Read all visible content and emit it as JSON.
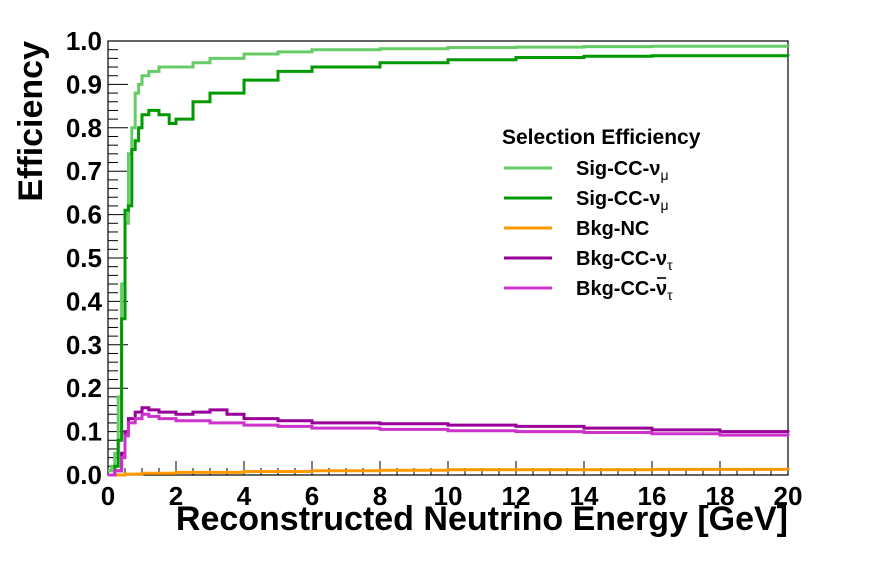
{
  "chart_data": {
    "type": "line",
    "xlabel": "Reconstructed Neutrino Energy [GeV]",
    "ylabel": "Efficiency",
    "xlim": [
      0,
      20
    ],
    "ylim": [
      0,
      1.0
    ],
    "x_ticks": [
      "0",
      "2",
      "4",
      "6",
      "8",
      "10",
      "12",
      "14",
      "16",
      "18",
      "20"
    ],
    "y_ticks": [
      "0.0",
      "0.1",
      "0.2",
      "0.3",
      "0.4",
      "0.5",
      "0.6",
      "0.7",
      "0.8",
      "0.9",
      "1.0"
    ],
    "grid": false,
    "legend_position": "top-right",
    "legend_title": "Selection Efficiency",
    "series": [
      {
        "base": "Sig-CC-",
        "sym": "ν",
        "sub": "μ",
        "bar": false,
        "color": "#66cc66",
        "x": [
          0,
          0.1,
          0.2,
          0.3,
          0.4,
          0.5,
          0.6,
          0.7,
          0.8,
          0.9,
          1.0,
          1.2,
          1.5,
          2.0,
          2.5,
          3.0,
          4.0,
          5.0,
          6.0,
          8.0,
          10.0,
          12.0,
          14.0,
          16.0,
          18.0,
          20.0
        ],
        "y": [
          0.01,
          0.02,
          0.05,
          0.18,
          0.44,
          0.58,
          0.74,
          0.8,
          0.88,
          0.9,
          0.92,
          0.93,
          0.94,
          0.94,
          0.95,
          0.96,
          0.97,
          0.975,
          0.98,
          0.982,
          0.985,
          0.986,
          0.987,
          0.988,
          0.988,
          0.987
        ]
      },
      {
        "base": "Sig-CC-",
        "sym": "ν",
        "sub": "μ",
        "bar": false,
        "color": "#009900",
        "x": [
          0,
          0.1,
          0.2,
          0.3,
          0.4,
          0.5,
          0.6,
          0.7,
          0.8,
          0.9,
          1.0,
          1.2,
          1.5,
          1.8,
          2.0,
          2.5,
          3.0,
          4.0,
          5.0,
          6.0,
          8.0,
          10.0,
          12.0,
          14.0,
          16.0,
          18.0,
          20.0
        ],
        "y": [
          0.0,
          0.0,
          0.02,
          0.08,
          0.36,
          0.61,
          0.62,
          0.75,
          0.77,
          0.8,
          0.83,
          0.84,
          0.83,
          0.81,
          0.82,
          0.86,
          0.88,
          0.91,
          0.93,
          0.94,
          0.95,
          0.957,
          0.962,
          0.965,
          0.966,
          0.966,
          0.965
        ]
      },
      {
        "base": "Bkg-NC",
        "sym": "",
        "sub": "",
        "bar": false,
        "color": "#ff9900",
        "x": [
          0,
          0.5,
          1.0,
          2.0,
          4.0,
          6.0,
          8.0,
          10.0,
          12.0,
          14.0,
          16.0,
          18.0,
          20.0
        ],
        "y": [
          0.0,
          0.002,
          0.004,
          0.006,
          0.008,
          0.01,
          0.011,
          0.012,
          0.012,
          0.012,
          0.013,
          0.013,
          0.012
        ]
      },
      {
        "base": "Bkg-CC-",
        "sym": "ν",
        "sub": "τ",
        "bar": false,
        "color": "#990099",
        "x": [
          0,
          0.2,
          0.4,
          0.5,
          0.6,
          0.8,
          1.0,
          1.2,
          1.5,
          2.0,
          2.5,
          3.0,
          3.5,
          4.0,
          5.0,
          6.0,
          8.0,
          10.0,
          12.0,
          14.0,
          16.0,
          18.0,
          20.0
        ],
        "y": [
          0.0,
          0.01,
          0.05,
          0.1,
          0.13,
          0.145,
          0.155,
          0.15,
          0.145,
          0.14,
          0.145,
          0.15,
          0.14,
          0.13,
          0.125,
          0.12,
          0.118,
          0.115,
          0.112,
          0.108,
          0.104,
          0.1,
          0.098
        ]
      },
      {
        "base": "Bkg-CC-",
        "sym": "ν",
        "sub": "τ",
        "bar": true,
        "color": "#cc33cc",
        "x": [
          0,
          0.2,
          0.4,
          0.5,
          0.6,
          0.8,
          1.0,
          1.2,
          1.5,
          2.0,
          2.5,
          3.0,
          4.0,
          5.0,
          6.0,
          8.0,
          10.0,
          12.0,
          14.0,
          16.0,
          18.0,
          20.0
        ],
        "y": [
          0.0,
          0.01,
          0.04,
          0.09,
          0.12,
          0.13,
          0.14,
          0.135,
          0.13,
          0.125,
          0.125,
          0.12,
          0.115,
          0.112,
          0.108,
          0.105,
          0.102,
          0.1,
          0.098,
          0.095,
          0.092,
          0.09
        ]
      }
    ]
  }
}
